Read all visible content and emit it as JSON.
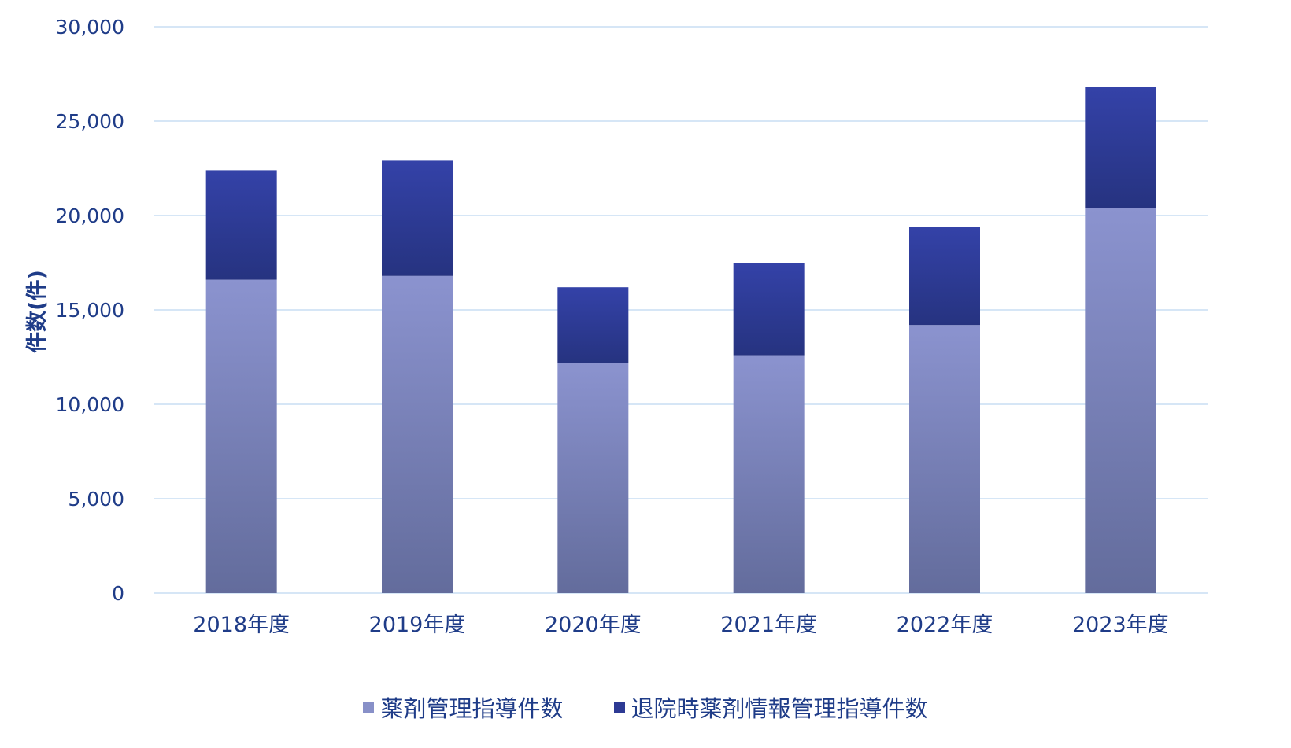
{
  "chart_data": {
    "type": "bar",
    "stacked": true,
    "categories": [
      "2018年度",
      "2019年度",
      "2020年度",
      "2021年度",
      "2022年度",
      "2023年度"
    ],
    "series": [
      {
        "name": "薬剤管理指導件数",
        "values": [
          16600,
          16800,
          12200,
          12600,
          14200,
          20400
        ],
        "color": "#8890c8"
      },
      {
        "name": "退院時薬剤情報管理指導件数",
        "values": [
          5800,
          6100,
          4000,
          4900,
          5200,
          6400
        ],
        "color": "#2d3a94"
      }
    ],
    "title": "",
    "xlabel": "",
    "ylabel": "件数(件)",
    "ylim": [
      0,
      30000
    ],
    "yticks": [
      "0",
      "5,000",
      "10,000",
      "15,000",
      "20,000",
      "25,000",
      "30,000"
    ],
    "grid": true,
    "legend_position": "bottom"
  }
}
